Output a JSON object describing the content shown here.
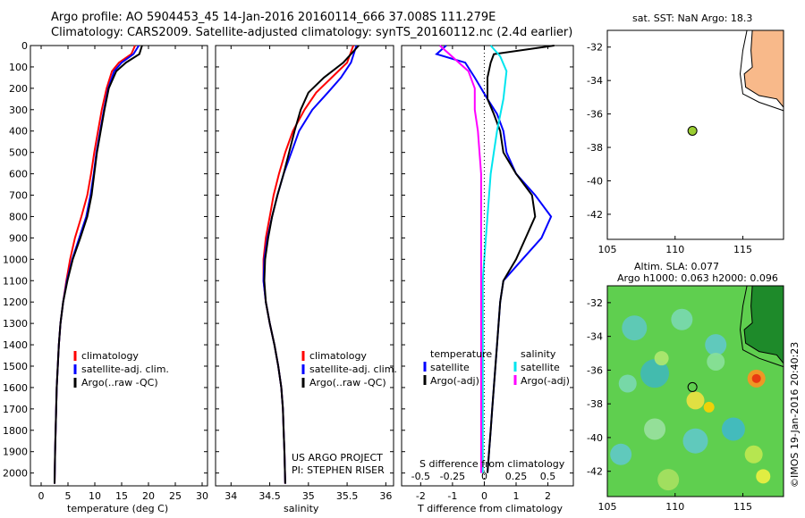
{
  "header": {
    "title_line1": "Argo profile: AO 5904453_45 14-Jan-2016 20160114_666 37.008S 111.279E",
    "title_line2": "Climatology: CARS2009. Satellite-adjusted climatology: synTS_20160112.nc (2.4d earlier)"
  },
  "credits": {
    "project": "US ARGO PROJECT",
    "pi": "PI: STEPHEN RISER",
    "imos": "©IMOS 19-Jan-2016 20:40:23"
  },
  "colors": {
    "climatology": "#ff0000",
    "satellite": "#0000ff",
    "argo": "#000000",
    "sal_satellite": "#00e5ee",
    "sal_argo": "#ff00ff",
    "land": "#f8b98a"
  },
  "chart_data": [
    {
      "type": "line",
      "panel": "temperature",
      "xlabel": "temperature (deg C)",
      "ylabel": "",
      "xlim": [
        -2,
        31
      ],
      "ylim": [
        2060,
        0
      ],
      "xticks": [
        "0",
        "5",
        "10",
        "15",
        "20",
        "25",
        "30"
      ],
      "yticks": [
        "0",
        "100",
        "200",
        "300",
        "400",
        "500",
        "600",
        "700",
        "800",
        "900",
        "1000",
        "1100",
        "1200",
        "1300",
        "1400",
        "1500",
        "1600",
        "1700",
        "1800",
        "1900",
        "2000"
      ],
      "legend": [
        "climatology",
        "satellite-adj. clim.",
        "Argo(..raw -QC)"
      ],
      "series": [
        {
          "name": "climatology",
          "x": [
            17.5,
            16.8,
            14.5,
            13.2,
            12.2,
            11.3,
            10.6,
            9.9,
            9.3,
            8.6,
            7.5,
            6.3,
            5.4,
            4.7,
            4.1,
            3.6,
            3.3,
            3.1,
            2.9,
            2.8,
            2.6,
            2.5
          ],
          "y": [
            0,
            40,
            80,
            120,
            200,
            300,
            400,
            500,
            600,
            700,
            800,
            900,
            1000,
            1100,
            1200,
            1300,
            1400,
            1500,
            1600,
            1700,
            1900,
            2050
          ]
        },
        {
          "name": "satellite-adj. clim.",
          "x": [
            18.2,
            17.2,
            15.0,
            13.6,
            12.5,
            11.7,
            11.0,
            10.3,
            9.8,
            9.2,
            8.4,
            7.1,
            5.8,
            4.8,
            4.1,
            3.6,
            3.3,
            3.1,
            2.9,
            2.8,
            2.6,
            2.5
          ],
          "y": [
            0,
            40,
            80,
            120,
            200,
            300,
            400,
            500,
            600,
            700,
            800,
            900,
            1000,
            1100,
            1200,
            1300,
            1400,
            1500,
            1600,
            1700,
            1900,
            2050
          ]
        },
        {
          "name": "Argo(..raw -QC)",
          "x": [
            18.8,
            18.3,
            15.8,
            14.0,
            12.6,
            11.8,
            11.1,
            10.4,
            9.9,
            9.4,
            8.6,
            7.3,
            5.9,
            4.9,
            4.1,
            3.6,
            3.3,
            3.1,
            2.9,
            2.8,
            2.6,
            2.5
          ],
          "y": [
            0,
            40,
            80,
            120,
            200,
            300,
            400,
            500,
            600,
            700,
            800,
            900,
            1000,
            1100,
            1200,
            1300,
            1400,
            1500,
            1600,
            1700,
            1900,
            2050
          ]
        }
      ]
    },
    {
      "type": "line",
      "panel": "salinity",
      "xlabel": "salinity",
      "ylabel": "",
      "xlim": [
        33.8,
        36.1
      ],
      "ylim": [
        2060,
        0
      ],
      "xticks": [
        "34",
        "34.5",
        "35",
        "35.5",
        "36"
      ],
      "legend": [
        "climatology",
        "satellite-adj. clim.",
        "Argo(..raw -QC)"
      ],
      "series": [
        {
          "name": "climatology",
          "x": [
            35.58,
            35.5,
            35.3,
            35.1,
            34.95,
            34.8,
            34.7,
            34.62,
            34.55,
            34.5,
            34.45,
            34.42,
            34.42,
            34.45,
            34.5,
            34.56,
            34.61,
            34.65,
            34.67,
            34.68,
            34.69,
            34.7
          ],
          "y": [
            0,
            80,
            150,
            220,
            300,
            400,
            500,
            600,
            700,
            800,
            900,
            1000,
            1100,
            1200,
            1300,
            1400,
            1500,
            1600,
            1700,
            1800,
            1900,
            2050
          ]
        },
        {
          "name": "satellite-adj. clim.",
          "x": [
            35.62,
            35.55,
            35.42,
            35.25,
            35.05,
            34.88,
            34.78,
            34.68,
            34.6,
            34.53,
            34.47,
            34.43,
            34.42,
            34.45,
            34.5,
            34.56,
            34.61,
            34.65,
            34.67,
            34.68,
            34.69,
            34.7
          ],
          "y": [
            0,
            80,
            150,
            220,
            300,
            400,
            500,
            600,
            700,
            800,
            900,
            1000,
            1100,
            1200,
            1300,
            1400,
            1500,
            1600,
            1700,
            1800,
            1900,
            2050
          ]
        },
        {
          "name": "Argo(..raw -QC)",
          "x": [
            35.65,
            35.45,
            35.2,
            35.0,
            34.9,
            34.82,
            34.75,
            34.68,
            34.6,
            34.53,
            34.48,
            34.44,
            34.43,
            34.45,
            34.5,
            34.56,
            34.61,
            34.65,
            34.67,
            34.68,
            34.69,
            34.7
          ],
          "y": [
            0,
            80,
            150,
            220,
            300,
            400,
            500,
            600,
            700,
            800,
            900,
            1000,
            1100,
            1200,
            1300,
            1400,
            1500,
            1600,
            1700,
            1800,
            1900,
            2050
          ]
        }
      ]
    },
    {
      "type": "line",
      "panel": "differences",
      "xlabel": "T difference from climatology",
      "xlabel_top": "S difference from climatology",
      "xlim": [
        -2.6,
        2.8
      ],
      "ylim": [
        2060,
        0
      ],
      "xticks": [
        "-2",
        "-1",
        "0",
        "1",
        "2"
      ],
      "xticks_top": [
        "-0.5",
        "-0.25",
        "0",
        "0.25",
        "0.5"
      ],
      "legend_t": [
        "temperature",
        "satellite",
        "Argo(-adj)"
      ],
      "legend_s": [
        "salinity",
        "satellite",
        "Argo(-adj)"
      ],
      "series": [
        {
          "name": "satellite",
          "x": [
            -1.2,
            -1.5,
            -0.6,
            -0.3,
            0.1,
            0.4,
            0.6,
            0.7,
            1.0,
            1.6,
            2.1,
            1.8,
            1.2,
            0.6,
            0.5,
            0.4,
            0.35,
            0.3,
            0.25,
            0.2,
            0.15,
            0.1
          ],
          "y": [
            0,
            40,
            80,
            150,
            250,
            320,
            400,
            500,
            600,
            700,
            800,
            900,
            1000,
            1100,
            1200,
            1400,
            1500,
            1600,
            1700,
            1800,
            1900,
            2000
          ]
        },
        {
          "name": "Argo(-adj)",
          "x": [
            2.2,
            0.3,
            0.2,
            0.1,
            0.1,
            0.3,
            0.5,
            0.6,
            1.0,
            1.5,
            1.6,
            1.3,
            1.0,
            0.6,
            0.5,
            0.4,
            0.35,
            0.3,
            0.25,
            0.2,
            0.15,
            0.1
          ],
          "y": [
            0,
            40,
            80,
            150,
            250,
            320,
            400,
            500,
            600,
            700,
            800,
            900,
            1000,
            1100,
            1200,
            1400,
            1500,
            1600,
            1700,
            1800,
            1900,
            2000
          ]
        },
        {
          "name": "sal satellite",
          "x": [
            0.2,
            0.5,
            0.7,
            0.6,
            0.4,
            0.3,
            0.2,
            0.15,
            0.1,
            0.05,
            0.0,
            -0.05,
            -0.05,
            -0.05,
            -0.05,
            -0.05,
            -0.05,
            -0.05
          ],
          "y": [
            0,
            50,
            120,
            250,
            400,
            500,
            600,
            700,
            800,
            900,
            1000,
            1100,
            1200,
            1400,
            1600,
            1800,
            1900,
            2000
          ]
        },
        {
          "name": "sal Argo(-adj)",
          "x": [
            -1.4,
            -0.5,
            -0.3,
            -0.3,
            -0.2,
            -0.15,
            -0.1,
            -0.1,
            -0.1,
            -0.1,
            -0.1,
            -0.1,
            -0.1,
            -0.1,
            -0.1,
            -0.1,
            -0.1
          ],
          "y": [
            0,
            120,
            200,
            300,
            400,
            500,
            600,
            700,
            800,
            900,
            1000,
            1200,
            1400,
            1600,
            1800,
            1900,
            2000
          ]
        }
      ]
    },
    {
      "type": "scatter",
      "panel": "sst_map",
      "title": "sat. SST: NaN Argo: 18.3",
      "xlim": [
        105,
        118
      ],
      "ylim": [
        -43.5,
        -31
      ],
      "xticks": [
        "105",
        "110",
        "115"
      ],
      "yticks": [
        "-32",
        "-34",
        "-36",
        "-38",
        "-40",
        "-42"
      ],
      "point": {
        "lon": 111.279,
        "lat": -37.008
      }
    },
    {
      "type": "heatmap",
      "panel": "sla_map",
      "title_line1": "Altim. SLA: 0.077",
      "title_line2": "Argo h1000: 0.063 h2000: 0.096",
      "xlim": [
        105,
        118
      ],
      "ylim": [
        -43.5,
        -31
      ],
      "xticks": [
        "105",
        "110",
        "115"
      ],
      "yticks": [
        "-32",
        "-34",
        "-36",
        "-38",
        "-40",
        "-42"
      ],
      "point": {
        "lon": 111.279,
        "lat": -37.008
      }
    }
  ]
}
